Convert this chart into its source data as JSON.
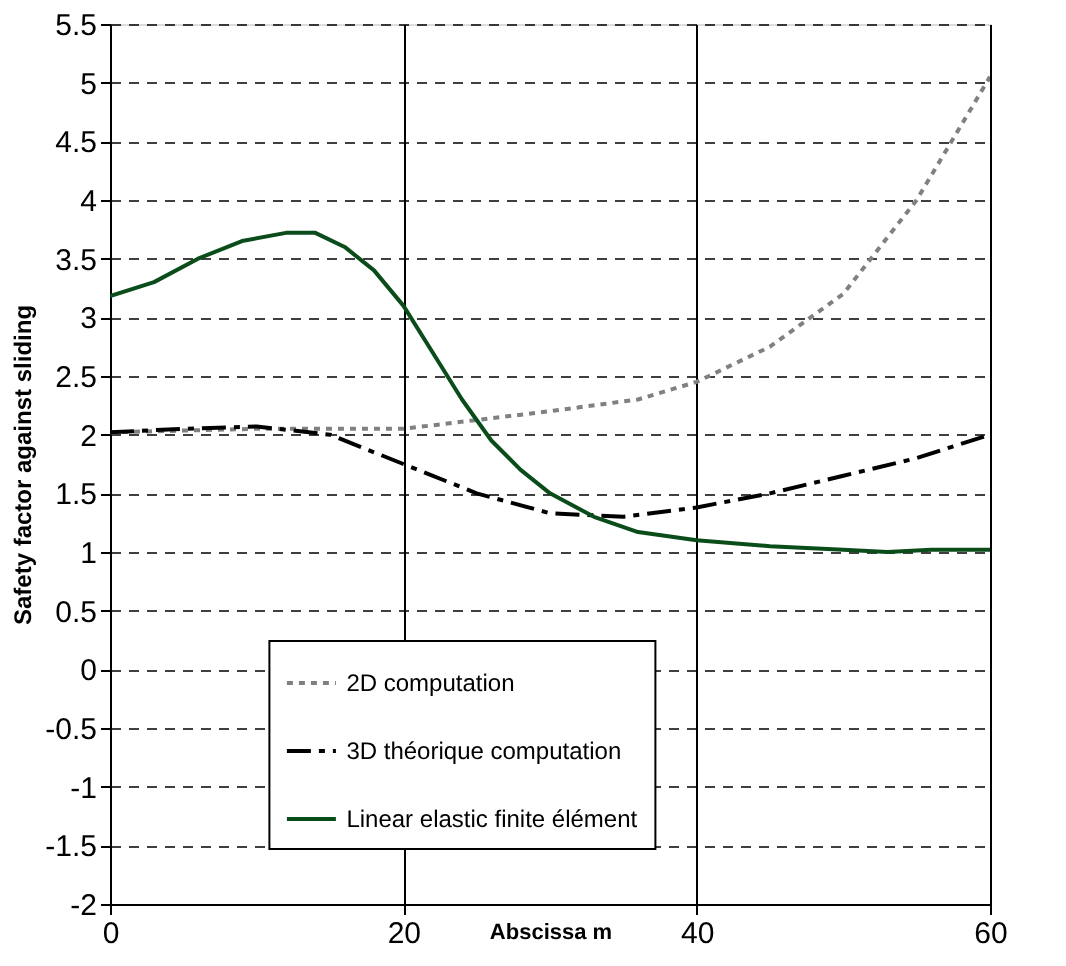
{
  "chart_data": {
    "type": "line",
    "xlabel": "Abscissa m",
    "ylabel": "Safety factor against sliding",
    "xlim": [
      0,
      60
    ],
    "xticks": [
      0,
      20,
      40,
      60
    ],
    "ylim": [
      -2,
      5.5
    ],
    "yticks": [
      -2,
      -1.5,
      -1,
      -0.5,
      0,
      0.5,
      1,
      1.5,
      2,
      2.5,
      3,
      3.5,
      4,
      4.5,
      5,
      5.5
    ],
    "grid": true,
    "legend": "bottom",
    "marker": "none",
    "series": [
      {
        "name": "2D computation",
        "color": "#808080",
        "line_style": "dotted",
        "x": [
          0,
          10,
          20,
          30,
          36,
          40,
          45,
          50,
          55,
          60
        ],
        "values": [
          2.02,
          2.05,
          2.05,
          2.2,
          2.3,
          2.45,
          2.75,
          3.2,
          4.0,
          5.05
        ]
      },
      {
        "name": "3D théorique computation",
        "color": "#000000",
        "line_style": "dashed",
        "x": [
          0,
          5,
          10,
          15,
          20,
          25,
          30,
          35,
          40,
          45,
          50,
          55,
          60
        ],
        "values": [
          2.02,
          2.05,
          2.07,
          2.0,
          1.75,
          1.5,
          1.33,
          1.3,
          1.38,
          1.5,
          1.65,
          1.8,
          2.0
        ]
      },
      {
        "name": "Linear elastic finite élément",
        "color": "#0b4d1a",
        "line_style": "solid",
        "x": [
          0,
          3,
          6,
          9,
          12,
          14,
          16,
          18,
          20,
          22,
          24,
          26,
          28,
          30,
          33,
          36,
          40,
          45,
          50,
          53,
          56,
          60
        ],
        "values": [
          3.18,
          3.3,
          3.5,
          3.65,
          3.72,
          3.72,
          3.6,
          3.4,
          3.1,
          2.7,
          2.3,
          1.95,
          1.7,
          1.5,
          1.3,
          1.17,
          1.1,
          1.05,
          1.02,
          1.0,
          1.02,
          1.02
        ]
      }
    ]
  }
}
